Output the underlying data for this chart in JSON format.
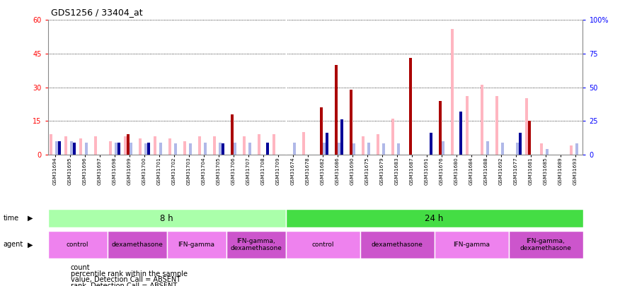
{
  "title": "GDS1256 / 33404_at",
  "samples": [
    "GSM31694",
    "GSM31695",
    "GSM31696",
    "GSM31697",
    "GSM31698",
    "GSM31699",
    "GSM31700",
    "GSM31701",
    "GSM31702",
    "GSM31703",
    "GSM31704",
    "GSM31705",
    "GSM31706",
    "GSM31707",
    "GSM31708",
    "GSM31709",
    "GSM31674",
    "GSM31678",
    "GSM31682",
    "GSM31686",
    "GSM31690",
    "GSM31675",
    "GSM31679",
    "GSM31683",
    "GSM31687",
    "GSM31691",
    "GSM31676",
    "GSM31680",
    "GSM31684",
    "GSM31688",
    "GSM31692",
    "GSM31677",
    "GSM31681",
    "GSM31685",
    "GSM31689",
    "GSM31693"
  ],
  "count": [
    0,
    0,
    0,
    0,
    0,
    9,
    0,
    0,
    0,
    0,
    0,
    0,
    18,
    0,
    0,
    0,
    0,
    0,
    21,
    40,
    29,
    0,
    0,
    0,
    43,
    0,
    24,
    0,
    0,
    0,
    0,
    0,
    15,
    0,
    0,
    0
  ],
  "percentile_rank": [
    10,
    9,
    0,
    0,
    9,
    0,
    9,
    0,
    0,
    0,
    0,
    8,
    0,
    0,
    9,
    0,
    0,
    0,
    16,
    26,
    0,
    0,
    0,
    0,
    0,
    16,
    0,
    32,
    0,
    0,
    0,
    16,
    0,
    0,
    0,
    0
  ],
  "absent_value": [
    9,
    8,
    7,
    8,
    6,
    8,
    7,
    8,
    7,
    6,
    8,
    8,
    0,
    8,
    9,
    9,
    0,
    10,
    0,
    0,
    0,
    8,
    9,
    16,
    0,
    0,
    0,
    56,
    26,
    31,
    26,
    0,
    25,
    5,
    0,
    4
  ],
  "absent_rank": [
    10,
    10,
    9,
    0,
    9,
    9,
    8,
    9,
    8,
    8,
    9,
    9,
    9,
    9,
    0,
    0,
    9,
    0,
    9,
    9,
    8,
    9,
    8,
    8,
    0,
    0,
    10,
    0,
    0,
    10,
    9,
    9,
    0,
    4,
    0,
    8
  ],
  "count_color": "#aa0000",
  "prank_color": "#000099",
  "absent_value_color": "#ffb6c1",
  "absent_rank_color": "#b0b8e8",
  "time_groups": [
    {
      "label": "8 h",
      "start": 0,
      "end": 16,
      "color": "#aaffaa"
    },
    {
      "label": "24 h",
      "start": 16,
      "end": 36,
      "color": "#44dd44"
    }
  ],
  "agent_groups": [
    {
      "label": "control",
      "start": 0,
      "end": 4,
      "color": "#ee82ee"
    },
    {
      "label": "dexamethasone",
      "start": 4,
      "end": 8,
      "color": "#cc55cc"
    },
    {
      "label": "IFN-gamma",
      "start": 8,
      "end": 12,
      "color": "#ee82ee"
    },
    {
      "label": "IFN-gamma,\ndexamethasone",
      "start": 12,
      "end": 16,
      "color": "#cc55cc"
    },
    {
      "label": "control",
      "start": 16,
      "end": 21,
      "color": "#ee82ee"
    },
    {
      "label": "dexamethasone",
      "start": 21,
      "end": 26,
      "color": "#cc55cc"
    },
    {
      "label": "IFN-gamma",
      "start": 26,
      "end": 31,
      "color": "#ee82ee"
    },
    {
      "label": "IFN-gamma,\ndexamethasone",
      "start": 31,
      "end": 36,
      "color": "#cc55cc"
    }
  ],
  "left_ylim": [
    0,
    60
  ],
  "right_ylim": [
    0,
    100
  ],
  "left_yticks": [
    0,
    15,
    30,
    45,
    60
  ],
  "right_yticks": [
    0,
    25,
    50,
    75,
    100
  ],
  "right_yticklabels": [
    "0",
    "25",
    "50",
    "75",
    "100%"
  ],
  "bar_width": 0.2,
  "background_color": "#ffffff"
}
